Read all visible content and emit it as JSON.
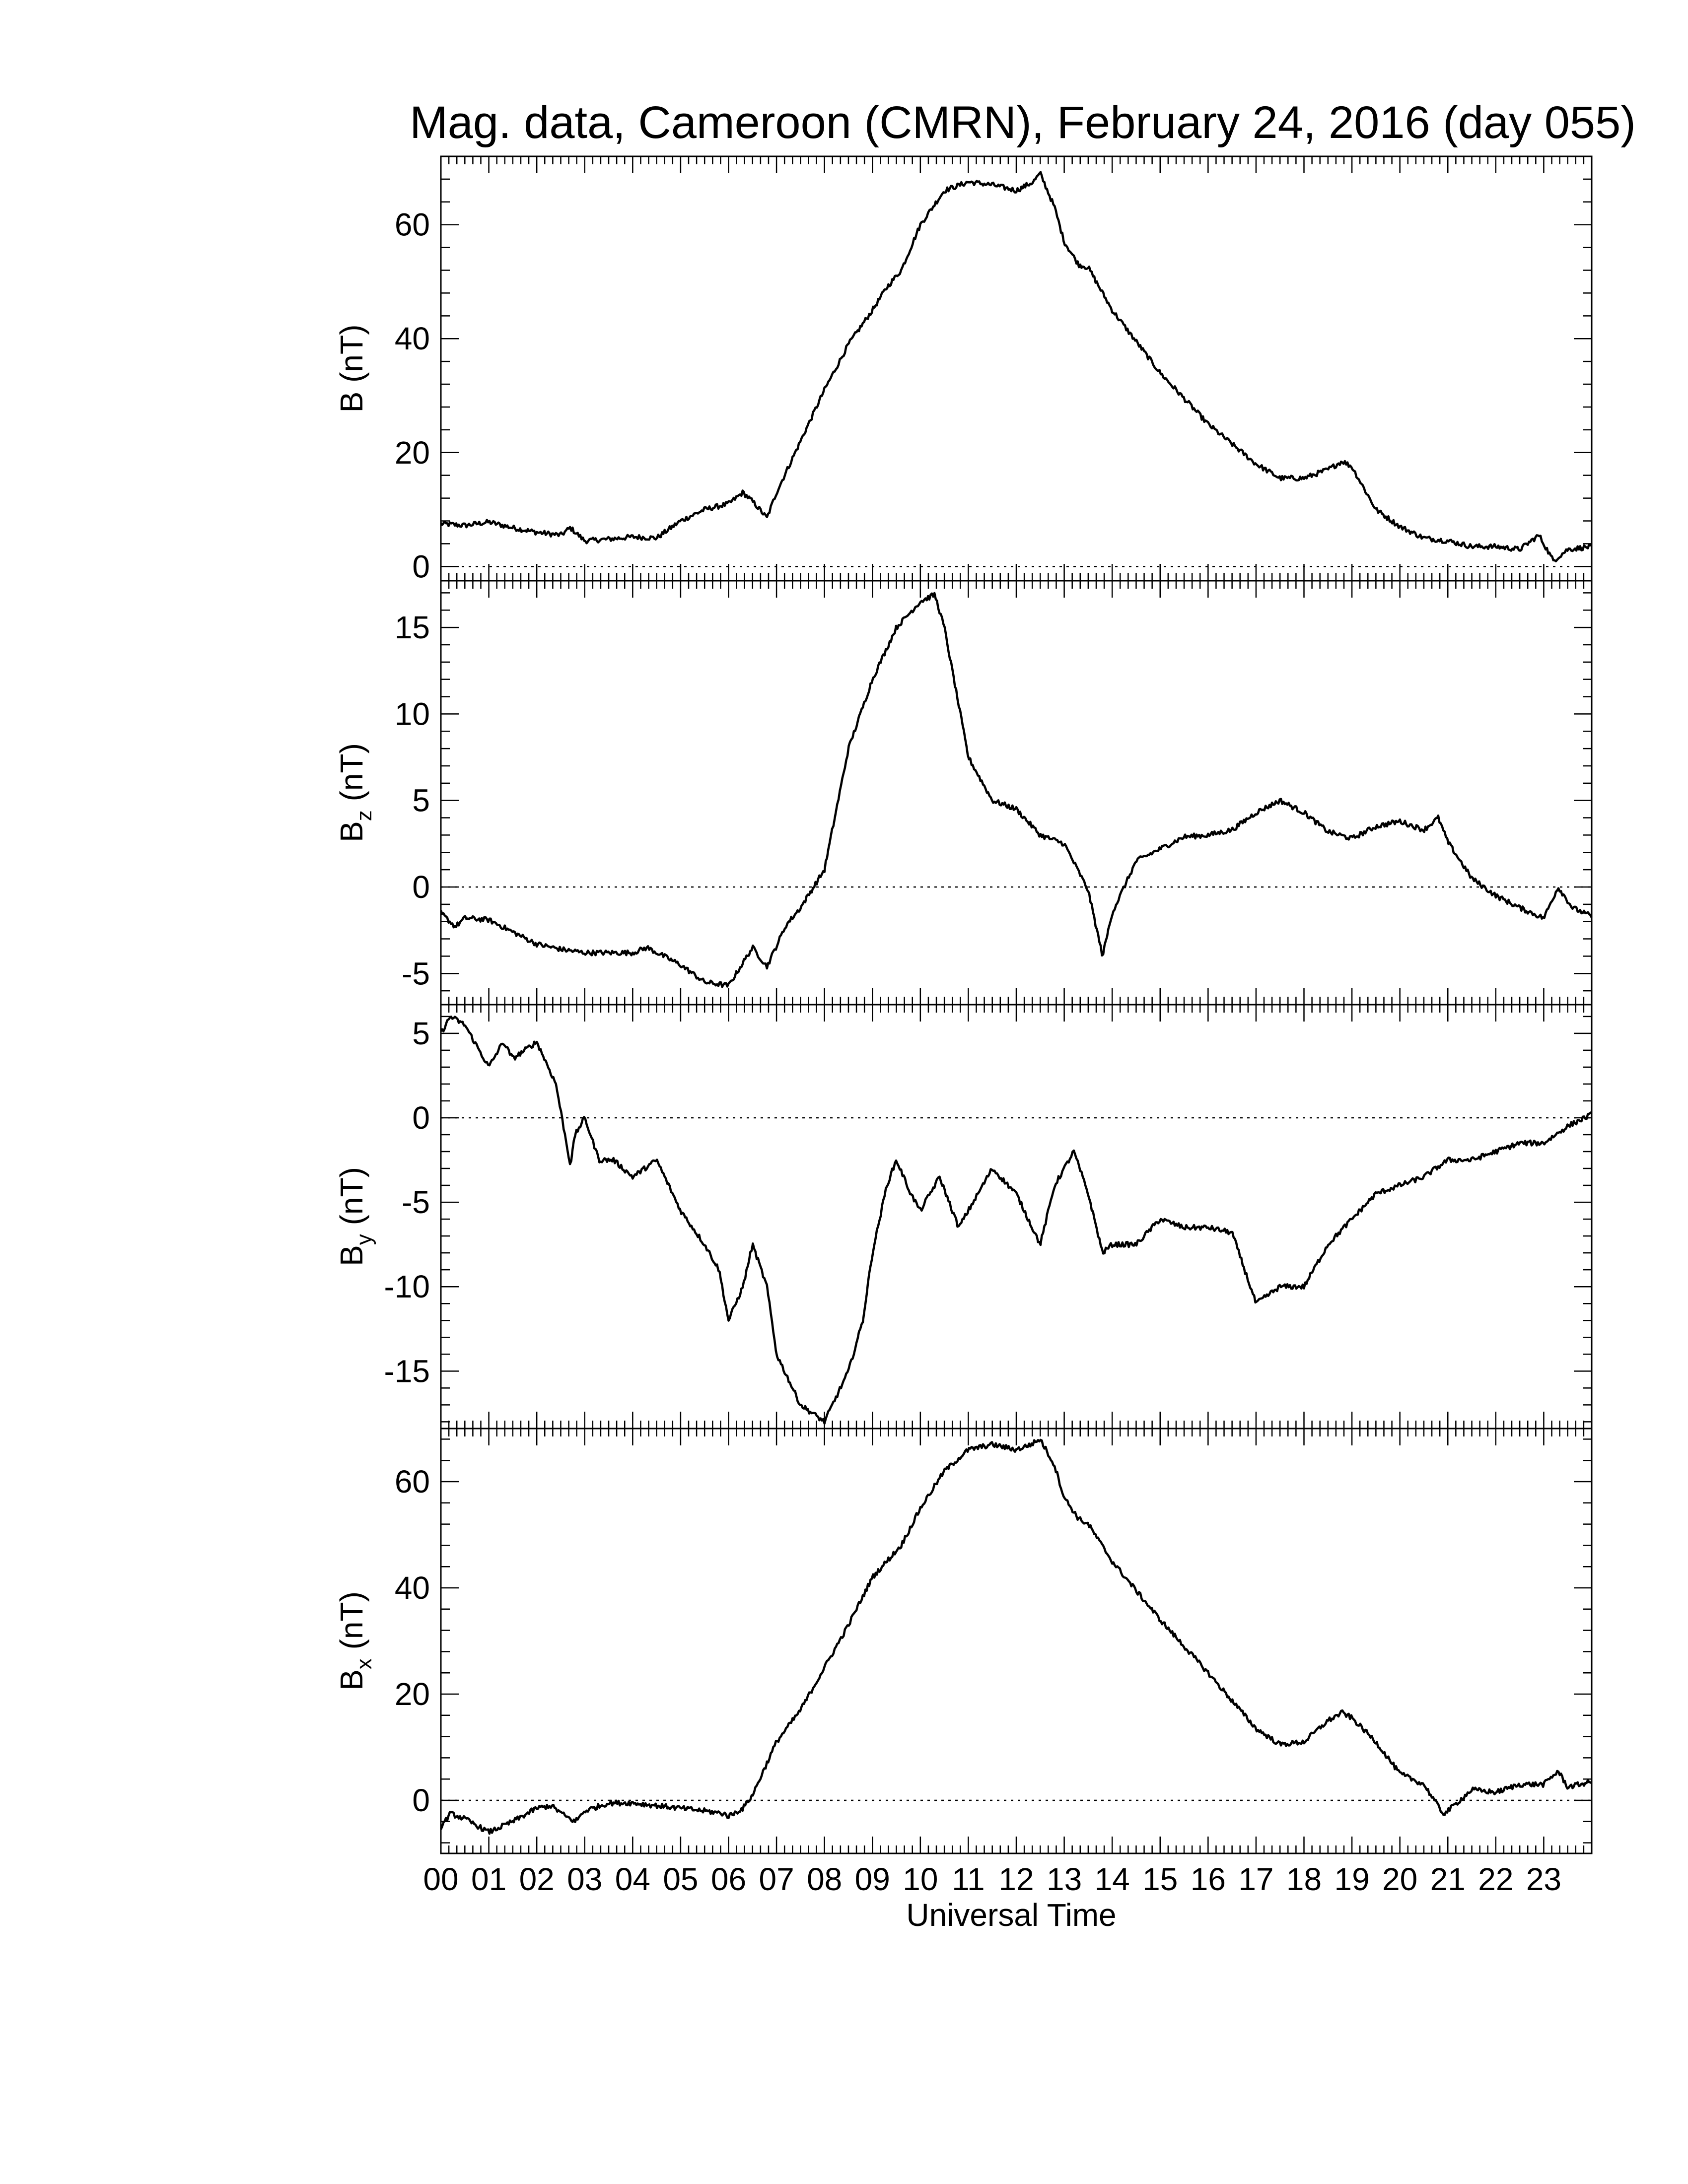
{
  "title": "Mag. data, Cameroon (CMRN), February 24, 2016 (day 055)",
  "chart_data": [
    {
      "type": "line",
      "ylabel_main": "B",
      "ylabel_sub": "",
      "ylabel_unit": "(nT)",
      "ylim": [
        -2.5,
        72
      ],
      "yticks": [
        0,
        20,
        40,
        60
      ],
      "zero_line": true,
      "x": [
        0.0,
        0.5,
        1.0,
        1.5,
        2.0,
        2.5,
        2.7,
        3.0,
        3.5,
        4.0,
        4.5,
        5.0,
        5.5,
        6.0,
        6.3,
        6.55,
        6.8,
        7.0,
        7.5,
        8.0,
        8.5,
        9.0,
        9.3,
        9.6,
        10.0,
        10.5,
        11.0,
        11.5,
        12.0,
        12.35,
        12.5,
        12.8,
        13.0,
        13.3,
        13.5,
        14.0,
        15.0,
        16.0,
        17.0,
        17.5,
        18.0,
        18.5,
        18.8,
        19.0,
        19.5,
        20.0,
        20.5,
        21.0,
        21.5,
        22.0,
        22.5,
        22.9,
        23.2,
        23.5,
        24.0
      ],
      "y": [
        7.5,
        7.2,
        7.8,
        6.8,
        6.0,
        5.5,
        6.8,
        4.5,
        4.8,
        5.2,
        5.0,
        8.0,
        10.0,
        11.0,
        13.0,
        11.0,
        8.5,
        13.0,
        22.0,
        31.0,
        39.0,
        45.0,
        49.0,
        52.0,
        60.0,
        66.0,
        67.5,
        67.0,
        66.0,
        67.5,
        69.0,
        63.0,
        57.0,
        53.0,
        52.5,
        45.0,
        34.0,
        25.0,
        18.0,
        15.5,
        15.5,
        17.0,
        18.5,
        17.5,
        10.0,
        7.0,
        5.0,
        4.5,
        3.5,
        3.5,
        3.0,
        5.5,
        1.0,
        3.0,
        3.5
      ]
    },
    {
      "type": "line",
      "ylabel_main": "B",
      "ylabel_sub": "z",
      "ylabel_unit": "(nT)",
      "ylim": [
        -6.8,
        17.7
      ],
      "yticks": [
        -5,
        0,
        5,
        10,
        15
      ],
      "zero_line": true,
      "x": [
        0.0,
        0.3,
        0.5,
        1.0,
        1.5,
        2.0,
        2.5,
        3.0,
        3.5,
        4.0,
        4.3,
        5.0,
        5.5,
        6.0,
        6.5,
        6.8,
        7.2,
        7.5,
        8.0,
        8.5,
        9.0,
        9.5,
        10.0,
        10.3,
        10.5,
        11.0,
        11.5,
        12.0,
        12.5,
        13.0,
        13.5,
        13.8,
        14.0,
        14.5,
        15.0,
        15.5,
        16.0,
        16.5,
        17.0,
        17.5,
        18.0,
        18.5,
        19.0,
        19.5,
        20.0,
        20.5,
        20.8,
        21.0,
        21.5,
        22.0,
        22.5,
        23.0,
        23.3,
        23.6,
        24.0
      ],
      "y": [
        -1.5,
        -2.3,
        -1.8,
        -1.9,
        -2.6,
        -3.3,
        -3.6,
        -3.8,
        -3.8,
        -3.8,
        -3.5,
        -4.5,
        -5.5,
        -5.7,
        -3.5,
        -4.6,
        -2.2,
        -1.2,
        1.0,
        8.0,
        12.0,
        15.0,
        16.5,
        16.9,
        15.0,
        7.5,
        5.0,
        4.5,
        3.0,
        2.5,
        -0.2,
        -4.0,
        -1.5,
        1.5,
        2.2,
        2.9,
        3.0,
        3.3,
        4.3,
        5.0,
        4.3,
        3.2,
        2.8,
        3.5,
        3.8,
        3.3,
        4.0,
        2.6,
        0.5,
        -0.5,
        -1.2,
        -1.8,
        0.0,
        -1.2,
        -1.7
      ]
    },
    {
      "type": "line",
      "ylabel_main": "B",
      "ylabel_sub": "y",
      "ylabel_unit": "(nT)",
      "ylim": [
        -18.4,
        6.7
      ],
      "yticks": [
        -15,
        -10,
        -5,
        0,
        5
      ],
      "zero_line": true,
      "x": [
        0.0,
        0.2,
        0.5,
        1.0,
        1.3,
        1.5,
        2.0,
        2.4,
        2.7,
        2.8,
        3.0,
        3.3,
        3.6,
        4.0,
        4.5,
        5.0,
        5.5,
        5.8,
        6.0,
        6.3,
        6.5,
        6.8,
        7.0,
        7.5,
        8.0,
        8.5,
        8.8,
        9.0,
        9.3,
        9.5,
        9.8,
        10.0,
        10.4,
        10.8,
        11.0,
        11.5,
        12.0,
        12.5,
        12.8,
        13.2,
        13.5,
        13.8,
        14.0,
        14.5,
        15.0,
        15.5,
        16.0,
        16.5,
        17.0,
        17.5,
        18.0,
        18.5,
        19.0,
        19.5,
        20.0,
        20.5,
        21.0,
        21.5,
        22.0,
        22.5,
        23.0,
        23.5,
        24.0
      ],
      "y": [
        5.0,
        6.0,
        5.5,
        3.0,
        4.5,
        3.5,
        4.5,
        2.0,
        -2.8,
        -1.0,
        0.0,
        -2.5,
        -2.5,
        -3.5,
        -2.5,
        -5.5,
        -7.5,
        -9.0,
        -12.0,
        -10.0,
        -7.5,
        -10.0,
        -14.0,
        -17.0,
        -18.0,
        -15.0,
        -12.0,
        -8.0,
        -4.0,
        -2.5,
        -4.5,
        -5.5,
        -3.5,
        -6.5,
        -5.5,
        -3.0,
        -4.5,
        -7.5,
        -4.0,
        -2.0,
        -4.5,
        -8.0,
        -7.5,
        -7.5,
        -6.0,
        -6.5,
        -6.5,
        -6.8,
        -11.0,
        -10.0,
        -10.0,
        -7.5,
        -6.0,
        -4.5,
        -4.0,
        -3.5,
        -2.5,
        -2.5,
        -2.0,
        -1.5,
        -1.5,
        -0.5,
        0.2
      ]
    },
    {
      "type": "line",
      "ylabel_main": "B",
      "ylabel_sub": "x",
      "ylabel_unit": "(nT)",
      "ylim": [
        -10.0,
        70.0
      ],
      "yticks": [
        0,
        20,
        40,
        60
      ],
      "zero_line": true,
      "x": [
        0.0,
        0.2,
        0.5,
        1.0,
        1.5,
        2.0,
        2.3,
        2.6,
        2.8,
        3.0,
        3.5,
        4.0,
        4.5,
        5.0,
        5.5,
        5.9,
        6.0,
        6.3,
        6.5,
        7.0,
        7.5,
        8.0,
        8.5,
        9.0,
        9.3,
        9.6,
        10.0,
        10.5,
        11.0,
        11.5,
        12.0,
        12.3,
        12.5,
        12.8,
        13.0,
        13.3,
        13.5,
        14.0,
        15.0,
        16.0,
        17.0,
        17.5,
        18.0,
        18.5,
        18.8,
        19.0,
        19.5,
        20.0,
        20.5,
        20.9,
        21.0,
        21.5,
        22.0,
        22.5,
        23.0,
        23.3,
        23.5,
        24.0
      ],
      "y": [
        -5.0,
        -2.5,
        -3.5,
        -6.0,
        -4.0,
        -1.5,
        -1.0,
        -3.0,
        -4.0,
        -2.0,
        -0.5,
        -0.5,
        -1.0,
        -1.5,
        -2.0,
        -2.5,
        -3.0,
        -1.5,
        1.0,
        11.0,
        17.0,
        25.0,
        33.0,
        42.0,
        45.0,
        48.0,
        55.0,
        62.0,
        66.0,
        67.0,
        66.0,
        67.0,
        68.0,
        63.0,
        57.0,
        53.0,
        52.0,
        45.0,
        34.0,
        24.0,
        13.5,
        10.5,
        11.0,
        15.0,
        16.5,
        15.5,
        11.0,
        5.0,
        3.0,
        -2.5,
        -2.0,
        2.0,
        1.5,
        3.0,
        3.0,
        5.5,
        2.5,
        3.5
      ]
    }
  ],
  "x_axis": {
    "label": "Universal Time",
    "range": [
      0,
      24
    ],
    "tick_labels": [
      "00",
      "01",
      "02",
      "03",
      "04",
      "05",
      "06",
      "07",
      "08",
      "09",
      "10",
      "11",
      "12",
      "13",
      "14",
      "15",
      "16",
      "17",
      "18",
      "19",
      "20",
      "21",
      "22",
      "23"
    ]
  }
}
